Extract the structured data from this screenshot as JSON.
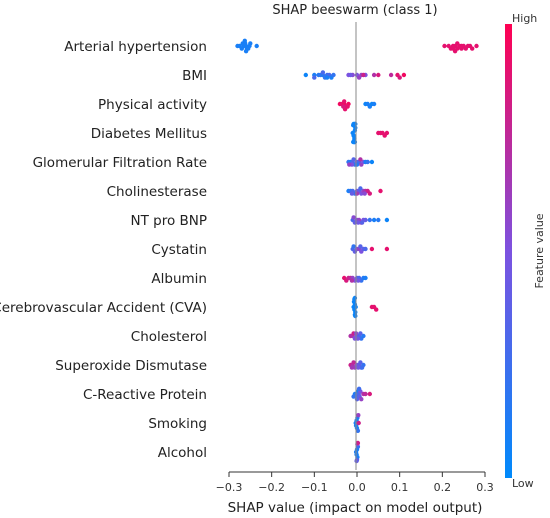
{
  "chart_data": {
    "type": "scatter",
    "subtype": "shap-beeswarm",
    "title": "SHAP beeswarm (class 1)",
    "xlabel": "SHAP value (impact on model output)",
    "xlim": [
      -0.3,
      0.3
    ],
    "xticks": [
      -0.3,
      -0.2,
      -0.1,
      0.0,
      0.1,
      0.2,
      0.3
    ],
    "xtick_labels": [
      "−0.3",
      "−0.2",
      "−0.1",
      "0.0",
      "0.1",
      "0.2",
      "0.3"
    ],
    "colorbar": {
      "label": "Feature value",
      "high_label": "High",
      "low_label": "Low",
      "low_color": "#1e88e5",
      "high_color": "#ff0052"
    },
    "features": [
      {
        "name": "Arterial hypertension",
        "points": [
          [
            -0.252,
            0.1
          ],
          [
            -0.26,
            0.1
          ],
          [
            -0.265,
            0.1
          ],
          [
            -0.27,
            0.1
          ],
          [
            -0.275,
            0.1
          ],
          [
            -0.258,
            0.1
          ],
          [
            -0.262,
            0.1
          ],
          [
            -0.255,
            0.1
          ],
          [
            -0.268,
            0.1
          ],
          [
            -0.28,
            0.1
          ],
          [
            -0.25,
            0.1
          ],
          [
            -0.235,
            0.1
          ],
          [
            -0.26,
            0.1
          ],
          [
            -0.263,
            0.1
          ],
          [
            0.205,
            0.9
          ],
          [
            0.215,
            0.9
          ],
          [
            0.22,
            0.9
          ],
          [
            0.225,
            0.9
          ],
          [
            0.23,
            0.9
          ],
          [
            0.235,
            0.9
          ],
          [
            0.24,
            0.9
          ],
          [
            0.245,
            0.9
          ],
          [
            0.25,
            0.9
          ],
          [
            0.255,
            0.9
          ],
          [
            0.26,
            0.9
          ],
          [
            0.265,
            0.9
          ],
          [
            0.27,
            0.9
          ],
          [
            0.28,
            0.9
          ],
          [
            0.225,
            0.9
          ],
          [
            0.235,
            0.9
          ],
          [
            0.245,
            0.9
          ],
          [
            0.23,
            0.9
          ]
        ]
      },
      {
        "name": "BMI",
        "points": [
          [
            -0.12,
            0.05
          ],
          [
            -0.1,
            0.1
          ],
          [
            -0.09,
            0.15
          ],
          [
            -0.085,
            0.2
          ],
          [
            -0.08,
            0.15
          ],
          [
            -0.075,
            0.2
          ],
          [
            -0.07,
            0.25
          ],
          [
            -0.065,
            0.3
          ],
          [
            -0.06,
            0.1
          ],
          [
            -0.055,
            0.2
          ],
          [
            -0.1,
            0.3
          ],
          [
            -0.08,
            0.3
          ],
          [
            -0.07,
            0.1
          ],
          [
            -0.02,
            0.5
          ],
          [
            -0.01,
            0.55
          ],
          [
            0.0,
            0.5
          ],
          [
            0.01,
            0.6
          ],
          [
            -0.015,
            0.45
          ],
          [
            0.02,
            0.5
          ],
          [
            0.005,
            0.6
          ],
          [
            0.04,
            0.7
          ],
          [
            0.05,
            0.85
          ],
          [
            0.08,
            0.75
          ],
          [
            0.095,
            0.9
          ],
          [
            0.1,
            0.85
          ],
          [
            0.11,
            0.95
          ],
          [
            0.015,
            0.8
          ]
        ]
      },
      {
        "name": "Physical activity",
        "points": [
          [
            -0.04,
            0.95
          ],
          [
            -0.035,
            0.9
          ],
          [
            -0.03,
            0.95
          ],
          [
            -0.025,
            0.85
          ],
          [
            -0.03,
            0.9
          ],
          [
            -0.02,
            0.95
          ],
          [
            -0.028,
            0.9
          ],
          [
            -0.032,
            0.85
          ],
          [
            -0.022,
            0.9
          ],
          [
            0.02,
            0.05
          ],
          [
            0.025,
            0.1
          ],
          [
            0.03,
            0.1
          ],
          [
            0.035,
            0.05
          ],
          [
            0.04,
            0.1
          ]
        ]
      },
      {
        "name": "Diabetes Mellitus",
        "points": [
          [
            -0.01,
            0.05
          ],
          [
            -0.008,
            0.05
          ],
          [
            -0.005,
            0.05
          ],
          [
            -0.006,
            0.05
          ],
          [
            -0.004,
            0.05
          ],
          [
            -0.007,
            0.05
          ],
          [
            -0.009,
            0.05
          ],
          [
            -0.005,
            0.05
          ],
          [
            -0.008,
            0.05
          ],
          [
            -0.006,
            0.05
          ],
          [
            -0.004,
            0.05
          ],
          [
            -0.007,
            0.05
          ],
          [
            -0.005,
            0.05
          ],
          [
            -0.009,
            0.05
          ],
          [
            0.05,
            0.9
          ],
          [
            0.055,
            0.9
          ],
          [
            0.06,
            0.9
          ],
          [
            0.065,
            0.9
          ],
          [
            0.07,
            0.9
          ]
        ]
      },
      {
        "name": "Glomerular Filtration Rate",
        "points": [
          [
            -0.02,
            0.2
          ],
          [
            -0.015,
            0.1
          ],
          [
            -0.01,
            0.3
          ],
          [
            -0.005,
            0.2
          ],
          [
            0.0,
            0.4
          ],
          [
            0.005,
            0.3
          ],
          [
            0.01,
            0.6
          ],
          [
            0.015,
            0.5
          ],
          [
            0.02,
            0.1
          ],
          [
            0.025,
            0.2
          ],
          [
            0.035,
            0.05
          ],
          [
            -0.012,
            0.5
          ],
          [
            -0.018,
            0.6
          ],
          [
            0.008,
            0.7
          ],
          [
            0.0,
            0.15
          ],
          [
            -0.008,
            0.35
          ]
        ]
      },
      {
        "name": "Cholinesterase",
        "points": [
          [
            -0.02,
            0.1
          ],
          [
            -0.015,
            0.2
          ],
          [
            -0.01,
            0.3
          ],
          [
            -0.005,
            0.2
          ],
          [
            0.0,
            0.5
          ],
          [
            0.005,
            0.4
          ],
          [
            0.01,
            0.5
          ],
          [
            0.015,
            0.6
          ],
          [
            0.02,
            0.7
          ],
          [
            0.025,
            0.8
          ],
          [
            0.03,
            0.85
          ],
          [
            0.055,
            0.9
          ],
          [
            -0.012,
            0.4
          ],
          [
            0.008,
            0.3
          ],
          [
            0.018,
            0.55
          ],
          [
            0.0,
            0.65
          ]
        ]
      },
      {
        "name": "NT pro BNP",
        "points": [
          [
            -0.01,
            0.3
          ],
          [
            -0.005,
            0.4
          ],
          [
            0.0,
            0.5
          ],
          [
            0.005,
            0.6
          ],
          [
            0.01,
            0.7
          ],
          [
            0.015,
            0.5
          ],
          [
            0.02,
            0.4
          ],
          [
            0.03,
            0.2
          ],
          [
            0.04,
            0.1
          ],
          [
            0.05,
            0.15
          ],
          [
            0.07,
            0.05
          ],
          [
            -0.008,
            0.55
          ],
          [
            0.003,
            0.45
          ],
          [
            0.012,
            0.35
          ]
        ]
      },
      {
        "name": "Cystatin",
        "points": [
          [
            -0.01,
            0.3
          ],
          [
            -0.005,
            0.4
          ],
          [
            0.0,
            0.5
          ],
          [
            0.005,
            0.6
          ],
          [
            0.01,
            0.5
          ],
          [
            0.015,
            0.4
          ],
          [
            0.02,
            0.3
          ],
          [
            -0.008,
            0.2
          ],
          [
            0.008,
            0.35
          ],
          [
            0.035,
            0.9
          ],
          [
            0.07,
            0.9
          ]
        ]
      },
      {
        "name": "Albumin",
        "points": [
          [
            -0.03,
            0.9
          ],
          [
            -0.025,
            0.85
          ],
          [
            -0.02,
            0.8
          ],
          [
            -0.015,
            0.75
          ],
          [
            -0.01,
            0.6
          ],
          [
            -0.005,
            0.5
          ],
          [
            0.0,
            0.4
          ],
          [
            0.005,
            0.3
          ],
          [
            0.01,
            0.2
          ],
          [
            0.015,
            0.15
          ],
          [
            0.02,
            0.1
          ],
          [
            -0.012,
            0.7
          ],
          [
            0.003,
            0.45
          ]
        ]
      },
      {
        "name": "Cerebrovascular Accident (CVA)",
        "points": [
          [
            -0.008,
            0.05
          ],
          [
            -0.006,
            0.05
          ],
          [
            -0.005,
            0.05
          ],
          [
            -0.004,
            0.05
          ],
          [
            -0.007,
            0.05
          ],
          [
            -0.003,
            0.05
          ],
          [
            -0.005,
            0.05
          ],
          [
            -0.006,
            0.05
          ],
          [
            -0.004,
            0.05
          ],
          [
            -0.005,
            0.05
          ],
          [
            0.035,
            0.9
          ],
          [
            0.04,
            0.9
          ],
          [
            0.045,
            0.9
          ]
        ]
      },
      {
        "name": "Cholesterol",
        "points": [
          [
            -0.01,
            0.6
          ],
          [
            -0.005,
            0.5
          ],
          [
            0.0,
            0.4
          ],
          [
            0.005,
            0.3
          ],
          [
            0.01,
            0.2
          ],
          [
            0.015,
            0.15
          ],
          [
            -0.015,
            0.7
          ],
          [
            -0.008,
            0.8
          ],
          [
            0.008,
            0.35
          ],
          [
            0.002,
            0.45
          ],
          [
            -0.002,
            0.55
          ]
        ]
      },
      {
        "name": "Superoxide Dismutase",
        "points": [
          [
            -0.015,
            0.8
          ],
          [
            -0.01,
            0.7
          ],
          [
            -0.005,
            0.6
          ],
          [
            0.0,
            0.5
          ],
          [
            0.005,
            0.4
          ],
          [
            0.01,
            0.3
          ],
          [
            0.015,
            0.2
          ],
          [
            -0.008,
            0.75
          ],
          [
            0.003,
            0.45
          ],
          [
            0.012,
            0.25
          ],
          [
            -0.012,
            0.65
          ],
          [
            0.008,
            0.35
          ]
        ]
      },
      {
        "name": "C-Reactive Protein",
        "points": [
          [
            -0.005,
            0.1
          ],
          [
            -0.002,
            0.15
          ],
          [
            0.0,
            0.2
          ],
          [
            0.002,
            0.1
          ],
          [
            0.004,
            0.3
          ],
          [
            0.006,
            0.4
          ],
          [
            0.008,
            0.5
          ],
          [
            0.01,
            0.6
          ],
          [
            0.015,
            0.7
          ],
          [
            0.02,
            0.75
          ],
          [
            0.03,
            0.85
          ],
          [
            -0.008,
            0.2
          ],
          [
            0.0,
            0.35
          ],
          [
            0.005,
            0.25
          ]
        ]
      },
      {
        "name": "Smoking",
        "points": [
          [
            -0.003,
            0.1
          ],
          [
            -0.002,
            0.1
          ],
          [
            -0.001,
            0.1
          ],
          [
            0.0,
            0.1
          ],
          [
            0.001,
            0.1
          ],
          [
            0.002,
            0.2
          ],
          [
            0.003,
            0.6
          ],
          [
            0.004,
            0.8
          ]
        ]
      },
      {
        "name": "Alcohol",
        "points": [
          [
            -0.002,
            0.1
          ],
          [
            -0.001,
            0.1
          ],
          [
            0.0,
            0.1
          ],
          [
            0.001,
            0.1
          ],
          [
            0.002,
            0.2
          ],
          [
            0.0,
            0.3
          ],
          [
            0.001,
            0.5
          ],
          [
            -0.001,
            0.4
          ],
          [
            0.002,
            0.8
          ]
        ]
      }
    ]
  }
}
